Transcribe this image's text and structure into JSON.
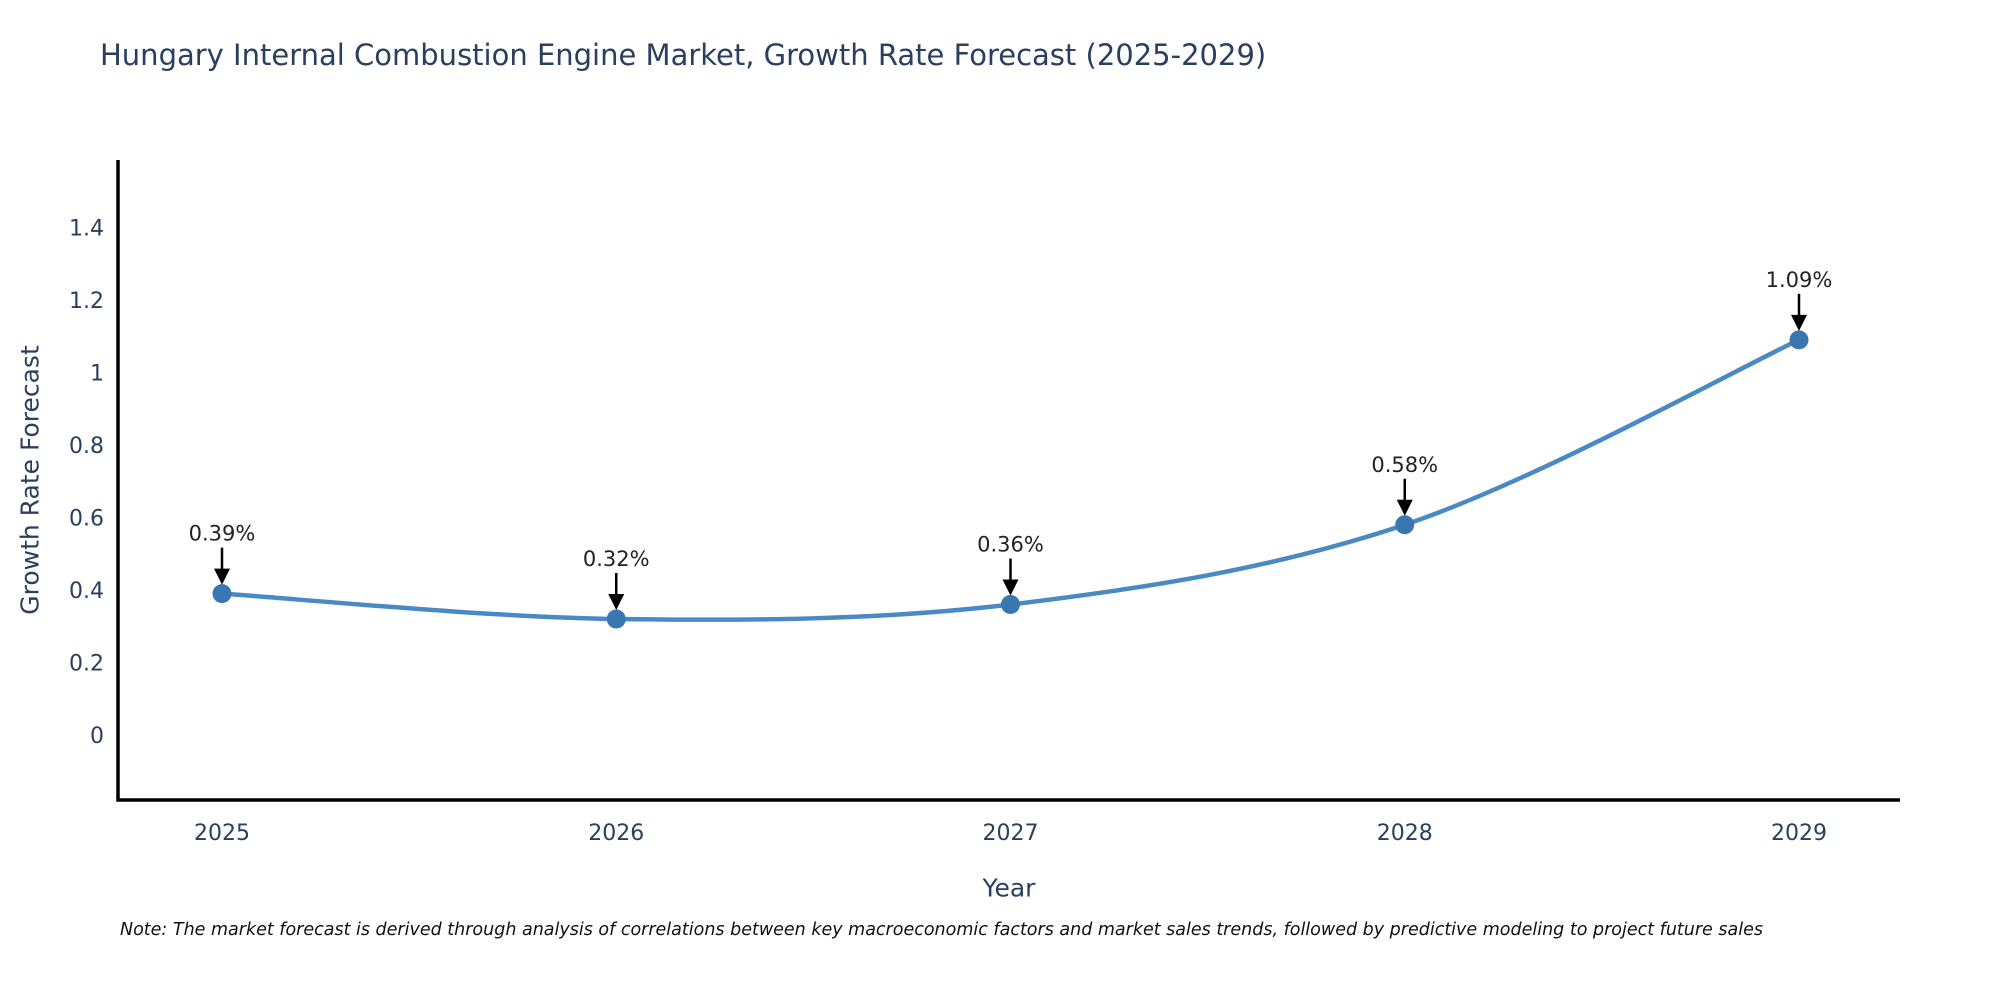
{
  "chart_data": {
    "type": "line",
    "title": "Hungary Internal Combustion Engine Market, Growth Rate Forecast (2025-2029)",
    "xlabel": "Year",
    "ylabel": "Growth Rate Forecast",
    "categories": [
      "2025",
      "2026",
      "2027",
      "2028",
      "2029"
    ],
    "values": [
      0.39,
      0.32,
      0.36,
      0.58,
      1.09
    ],
    "point_labels": [
      "0.39%",
      "0.32%",
      "0.36%",
      "0.58%",
      "1.09%"
    ],
    "yticks": [
      0,
      0.2,
      0.4,
      0.6,
      0.8,
      1,
      1.2,
      1.4
    ],
    "ylim": [
      -0.18,
      1.59
    ],
    "grid": false,
    "legend": "none",
    "marker_style": "circle",
    "annotation_arrows": "down",
    "colors": {
      "line": "#4a8ac4",
      "marker": "#3a76af",
      "axis_line": "#000000",
      "tick_label": "#2a3f5f",
      "title": "#2a3f5f",
      "annotation_text": "#222222",
      "arrow": "#000000",
      "background": "#ffffff"
    }
  },
  "note": {
    "text": "Note: The market forecast is derived through analysis of correlations between key macroeconomic factors and market sales trends, followed by predictive modeling to project future sales"
  }
}
